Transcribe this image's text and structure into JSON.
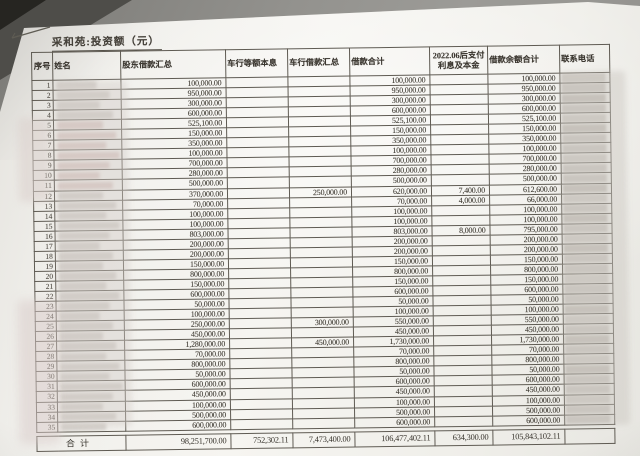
{
  "doc": {
    "title": "采和苑:投资额（元）",
    "redacted_columns": [
      "姓名",
      "联系电话"
    ],
    "colors": {
      "paper": "#f0efeb",
      "ink": "#3d3931",
      "table_line": "#5f5b53",
      "desk_surface": "#8f8e8a",
      "redact_gray": "#cbc7c1",
      "redact_pink": "#d9c8c4"
    }
  },
  "table": {
    "headers": {
      "no": "序号",
      "name": "姓名",
      "shareholder": "股东借款汇总",
      "car_equal": "车行等额本息",
      "car_loan": "车行借款汇总",
      "total": "借款合计",
      "after": "2022.06后支付利息及本金",
      "balance": "借款余额合计",
      "phone": "联系电话"
    },
    "rows": [
      {
        "no": "1",
        "shareholder": "100,000.00",
        "car_equal": "",
        "car_loan": "",
        "total": "100,000.00",
        "after": "",
        "balance": "100,000.00"
      },
      {
        "no": "2",
        "shareholder": "950,000.00",
        "car_equal": "",
        "car_loan": "",
        "total": "950,000.00",
        "after": "",
        "balance": "950,000.00"
      },
      {
        "no": "3",
        "shareholder": "300,000.00",
        "car_equal": "",
        "car_loan": "",
        "total": "300,000.00",
        "after": "",
        "balance": "300,000.00"
      },
      {
        "no": "4",
        "shareholder": "600,000.00",
        "car_equal": "",
        "car_loan": "",
        "total": "600,000.00",
        "after": "",
        "balance": "600,000.00"
      },
      {
        "no": "5",
        "shareholder": "525,100.00",
        "car_equal": "",
        "car_loan": "",
        "total": "525,100.00",
        "after": "",
        "balance": "525,100.00"
      },
      {
        "no": "6",
        "shareholder": "150,000.00",
        "car_equal": "",
        "car_loan": "",
        "total": "150,000.00",
        "after": "",
        "balance": "150,000.00"
      },
      {
        "no": "7",
        "shareholder": "350,000.00",
        "car_equal": "",
        "car_loan": "",
        "total": "350,000.00",
        "after": "",
        "balance": "350,000.00"
      },
      {
        "no": "8",
        "shareholder": "100,000.00",
        "car_equal": "",
        "car_loan": "",
        "total": "100,000.00",
        "after": "",
        "balance": "100,000.00"
      },
      {
        "no": "9",
        "shareholder": "700,000.00",
        "car_equal": "",
        "car_loan": "",
        "total": "700,000.00",
        "after": "",
        "balance": "700,000.00"
      },
      {
        "no": "10",
        "shareholder": "280,000.00",
        "car_equal": "",
        "car_loan": "",
        "total": "280,000.00",
        "after": "",
        "balance": "280,000.00"
      },
      {
        "no": "11",
        "shareholder": "500,000.00",
        "car_equal": "",
        "car_loan": "",
        "total": "500,000.00",
        "after": "",
        "balance": "500,000.00"
      },
      {
        "no": "12",
        "shareholder": "370,000.00",
        "car_equal": "",
        "car_loan": "250,000.00",
        "total": "620,000.00",
        "after": "7,400.00",
        "balance": "612,600.00"
      },
      {
        "no": "13",
        "shareholder": "70,000.00",
        "car_equal": "",
        "car_loan": "",
        "total": "70,000.00",
        "after": "4,000.00",
        "balance": "66,000.00"
      },
      {
        "no": "14",
        "shareholder": "100,000.00",
        "car_equal": "",
        "car_loan": "",
        "total": "100,000.00",
        "after": "",
        "balance": "100,000.00"
      },
      {
        "no": "15",
        "shareholder": "100,000.00",
        "car_equal": "",
        "car_loan": "",
        "total": "100,000.00",
        "after": "",
        "balance": "100,000.00"
      },
      {
        "no": "16",
        "shareholder": "803,000.00",
        "car_equal": "",
        "car_loan": "",
        "total": "803,000.00",
        "after": "8,000.00",
        "balance": "795,000.00"
      },
      {
        "no": "17",
        "shareholder": "200,000.00",
        "car_equal": "",
        "car_loan": "",
        "total": "200,000.00",
        "after": "",
        "balance": "200,000.00"
      },
      {
        "no": "18",
        "shareholder": "200,000.00",
        "car_equal": "",
        "car_loan": "",
        "total": "200,000.00",
        "after": "",
        "balance": "200,000.00"
      },
      {
        "no": "19",
        "shareholder": "150,000.00",
        "car_equal": "",
        "car_loan": "",
        "total": "150,000.00",
        "after": "",
        "balance": "150,000.00"
      },
      {
        "no": "20",
        "shareholder": "800,000.00",
        "car_equal": "",
        "car_loan": "",
        "total": "800,000.00",
        "after": "",
        "balance": "800,000.00"
      },
      {
        "no": "21",
        "shareholder": "150,000.00",
        "car_equal": "",
        "car_loan": "",
        "total": "150,000.00",
        "after": "",
        "balance": "150,000.00"
      },
      {
        "no": "22",
        "shareholder": "600,000.00",
        "car_equal": "",
        "car_loan": "",
        "total": "600,000.00",
        "after": "",
        "balance": "600,000.00"
      },
      {
        "no": "23",
        "shareholder": "50,000.00",
        "car_equal": "",
        "car_loan": "",
        "total": "50,000.00",
        "after": "",
        "balance": "50,000.00"
      },
      {
        "no": "24",
        "shareholder": "100,000.00",
        "car_equal": "",
        "car_loan": "",
        "total": "100,000.00",
        "after": "",
        "balance": "100,000.00"
      },
      {
        "no": "25",
        "shareholder": "250,000.00",
        "car_equal": "",
        "car_loan": "300,000.00",
        "total": "550,000.00",
        "after": "",
        "balance": "550,000.00"
      },
      {
        "no": "26",
        "shareholder": "450,000.00",
        "car_equal": "",
        "car_loan": "",
        "total": "450,000.00",
        "after": "",
        "balance": "450,000.00"
      },
      {
        "no": "27",
        "shareholder": "1,280,000.00",
        "car_equal": "",
        "car_loan": "450,000.00",
        "total": "1,730,000.00",
        "after": "",
        "balance": "1,730,000.00"
      },
      {
        "no": "28",
        "shareholder": "70,000.00",
        "car_equal": "",
        "car_loan": "",
        "total": "70,000.00",
        "after": "",
        "balance": "70,000.00"
      },
      {
        "no": "29",
        "shareholder": "800,000.00",
        "car_equal": "",
        "car_loan": "",
        "total": "800,000.00",
        "after": "",
        "balance": "800,000.00"
      },
      {
        "no": "30",
        "shareholder": "50,000.00",
        "car_equal": "",
        "car_loan": "",
        "total": "50,000.00",
        "after": "",
        "balance": "50,000.00"
      },
      {
        "no": "31",
        "shareholder": "600,000.00",
        "car_equal": "",
        "car_loan": "",
        "total": "600,000.00",
        "after": "",
        "balance": "600,000.00"
      },
      {
        "no": "32",
        "shareholder": "450,000.00",
        "car_equal": "",
        "car_loan": "",
        "total": "450,000.00",
        "after": "",
        "balance": "450,000.00"
      },
      {
        "no": "33",
        "shareholder": "100,000.00",
        "car_equal": "",
        "car_loan": "",
        "total": "100,000.00",
        "after": "",
        "balance": "100,000.00"
      },
      {
        "no": "34",
        "shareholder": "500,000.00",
        "car_equal": "",
        "car_loan": "",
        "total": "500,000.00",
        "after": "",
        "balance": "500,000.00"
      },
      {
        "no": "35",
        "shareholder": "600,000.00",
        "car_equal": "",
        "car_loan": "",
        "total": "600,000.00",
        "after": "",
        "balance": "600,000.00"
      }
    ],
    "total": {
      "label": "合计",
      "shareholder": "98,251,700.00",
      "car_equal": "752,302.11",
      "car_loan": "7,473,400.00",
      "total": "106,477,402.11",
      "after": "634,300.00",
      "balance": "105,843,102.11"
    }
  }
}
